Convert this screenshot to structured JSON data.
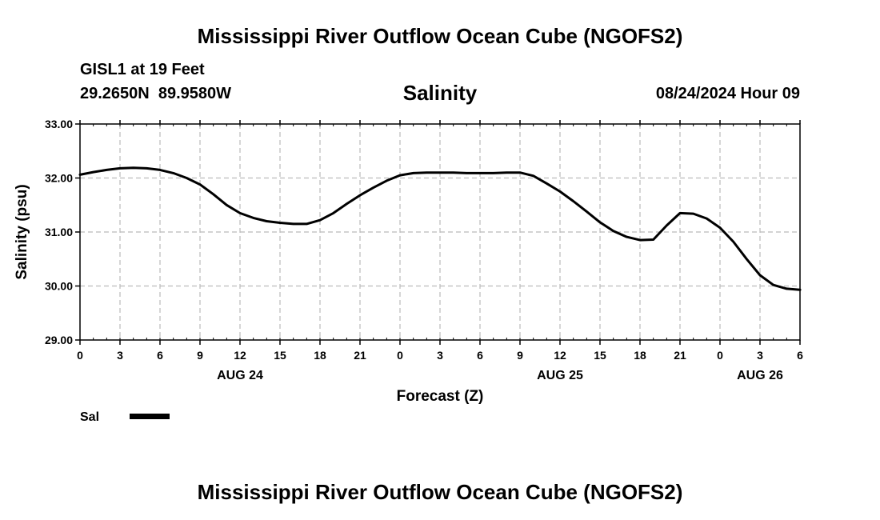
{
  "header": {
    "title": "Mississippi River Outflow Ocean Cube (NGOFS2)",
    "station": "GISL1 at 19 Feet",
    "coords": "29.2650N  89.9580W",
    "variable": "Salinity",
    "datetime": "08/24/2024 Hour 09"
  },
  "footer": {
    "title": "Mississippi River Outflow Ocean Cube (NGOFS2)"
  },
  "chart_data": {
    "type": "line",
    "title": "Salinity",
    "xlabel": "Forecast (Z)",
    "ylabel": "Salinity (psu)",
    "ylim": [
      29.0,
      33.0
    ],
    "xlim": [
      0,
      54
    ],
    "grid": true,
    "yticks": [
      29.0,
      30.0,
      31.0,
      32.0,
      33.0
    ],
    "ytick_labels": [
      "29.00",
      "30.00",
      "31.00",
      "32.00",
      "33.00"
    ],
    "xtick_hours": [
      0,
      3,
      6,
      9,
      12,
      15,
      18,
      21,
      24,
      27,
      30,
      33,
      36,
      39,
      42,
      45,
      48,
      51,
      54
    ],
    "xtick_labels": [
      "0",
      "3",
      "6",
      "9",
      "12",
      "15",
      "18",
      "21",
      "0",
      "3",
      "6",
      "9",
      "12",
      "15",
      "18",
      "21",
      "0",
      "3",
      "6"
    ],
    "date_labels": [
      {
        "hour": 12,
        "label": "AUG 24"
      },
      {
        "hour": 36,
        "label": "AUG 25"
      },
      {
        "hour": 51,
        "label": "AUG 26"
      }
    ],
    "legend": {
      "placement": "bottom-left",
      "entries": [
        {
          "name": "Sal",
          "color": "#000000"
        }
      ]
    },
    "series": [
      {
        "name": "Sal",
        "color": "#000000",
        "x": [
          0,
          1,
          2,
          3,
          4,
          5,
          6,
          7,
          8,
          9,
          10,
          11,
          12,
          13,
          14,
          15,
          16,
          17,
          18,
          19,
          20,
          21,
          22,
          23,
          24,
          25,
          26,
          27,
          28,
          29,
          30,
          31,
          32,
          33,
          34,
          35,
          36,
          37,
          38,
          39,
          40,
          41,
          42,
          43,
          44,
          45,
          46,
          47,
          48,
          49,
          50,
          51,
          52,
          53,
          54
        ],
        "values": [
          32.06,
          32.11,
          32.15,
          32.18,
          32.19,
          32.18,
          32.15,
          32.09,
          32.0,
          31.88,
          31.7,
          31.5,
          31.35,
          31.26,
          31.2,
          31.17,
          31.15,
          31.15,
          31.22,
          31.35,
          31.52,
          31.68,
          31.82,
          31.95,
          32.05,
          32.09,
          32.1,
          32.1,
          32.1,
          32.09,
          32.09,
          32.09,
          32.1,
          32.1,
          32.04,
          31.9,
          31.75,
          31.57,
          31.38,
          31.18,
          31.02,
          30.91,
          30.85,
          30.86,
          31.12,
          31.35,
          31.34,
          31.25,
          31.08,
          30.82,
          30.5,
          30.2,
          30.02,
          29.95,
          29.93
        ]
      }
    ]
  }
}
